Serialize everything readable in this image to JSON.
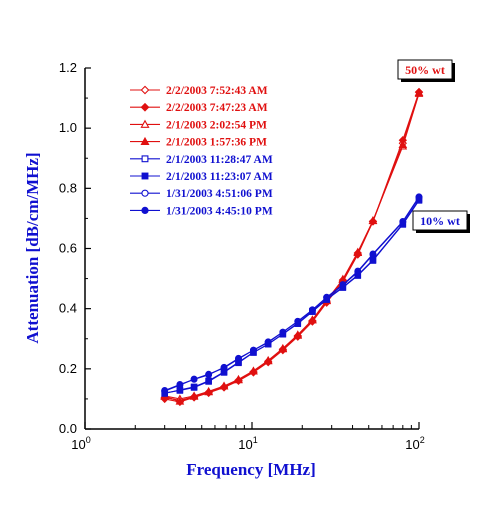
{
  "chart_data": {
    "type": "line",
    "title": "",
    "xlabel": "Frequency [MHz]",
    "ylabel": "Attenuation [dB/cm/MHz]",
    "x_scale": "log",
    "xlim": [
      1,
      100
    ],
    "ylim": [
      0,
      1.2
    ],
    "x_ticks": [
      {
        "value": 1,
        "base": "10",
        "exp": "0"
      },
      {
        "value": 10,
        "base": "10",
        "exp": "1"
      },
      {
        "value": 100,
        "base": "10",
        "exp": "2"
      }
    ],
    "y_ticks": [
      "0.0",
      "0.2",
      "0.4",
      "0.6",
      "0.8",
      "1.0",
      "1.2"
    ],
    "y_tick_values": [
      0,
      0.2,
      0.4,
      0.6,
      0.8,
      1.0,
      1.2
    ],
    "grid": false,
    "legend_position": "top-left",
    "colors": {
      "red": "#e01010",
      "blue": "#1010d0"
    },
    "series": [
      {
        "name": "2/2/2003 7:52:43 AM",
        "color": "#e01010",
        "marker": "diamond",
        "filled": false,
        "x": [
          3,
          3.7,
          4.5,
          5.5,
          6.8,
          8.3,
          10.2,
          12.5,
          15.3,
          18.8,
          23,
          28,
          35,
          43,
          53,
          80,
          100
        ],
        "y": [
          0.105,
          0.095,
          0.107,
          0.122,
          0.14,
          0.162,
          0.19,
          0.225,
          0.265,
          0.31,
          0.36,
          0.425,
          0.495,
          0.585,
          0.69,
          0.95,
          1.12
        ]
      },
      {
        "name": "2/2/2003 7:47:23 AM",
        "color": "#e01010",
        "marker": "diamond",
        "filled": true,
        "x": [
          3,
          3.7,
          4.5,
          5.5,
          6.8,
          8.3,
          10.2,
          12.5,
          15.3,
          18.8,
          23,
          28,
          35,
          43,
          53,
          80,
          100
        ],
        "y": [
          0.1,
          0.09,
          0.105,
          0.12,
          0.138,
          0.16,
          0.188,
          0.222,
          0.262,
          0.307,
          0.357,
          0.42,
          0.49,
          0.58,
          0.69,
          0.96,
          1.12
        ]
      },
      {
        "name": "2/1/2003 2:02:54 PM",
        "color": "#e01010",
        "marker": "triangle",
        "filled": false,
        "x": [
          3,
          3.7,
          4.5,
          5.5,
          6.8,
          8.3,
          10.2,
          12.5,
          15.3,
          18.8,
          23,
          28,
          35,
          43,
          53,
          80,
          100
        ],
        "y": [
          0.11,
          0.1,
          0.11,
          0.125,
          0.143,
          0.165,
          0.193,
          0.228,
          0.268,
          0.313,
          0.363,
          0.428,
          0.498,
          0.588,
          0.693,
          0.94,
          1.115
        ]
      },
      {
        "name": "2/1/2003 1:57:36 PM",
        "color": "#e01010",
        "marker": "triangle",
        "filled": true,
        "x": [
          3,
          3.7,
          4.5,
          5.5,
          6.8,
          8.3,
          10.2,
          12.5,
          15.3,
          18.8,
          23,
          28,
          35,
          43,
          53,
          80,
          100
        ],
        "y": [
          0.108,
          0.092,
          0.108,
          0.123,
          0.142,
          0.163,
          0.192,
          0.226,
          0.266,
          0.311,
          0.362,
          0.426,
          0.496,
          0.586,
          0.692,
          0.945,
          1.118
        ]
      },
      {
        "name": "2/1/2003 11:28:47 AM",
        "color": "#1010d0",
        "marker": "square",
        "filled": false,
        "x": [
          3,
          3.7,
          4.5,
          5.5,
          6.8,
          8.3,
          10.2,
          12.5,
          15.3,
          18.8,
          23,
          28,
          35,
          43,
          53,
          80,
          100
        ],
        "y": [
          0.118,
          0.13,
          0.14,
          0.16,
          0.19,
          0.222,
          0.255,
          0.282,
          0.315,
          0.35,
          0.39,
          0.43,
          0.47,
          0.51,
          0.56,
          0.68,
          0.76
        ]
      },
      {
        "name": "2/1/2003 11:23:07 AM",
        "color": "#1010d0",
        "marker": "square",
        "filled": true,
        "x": [
          3,
          3.7,
          4.5,
          5.5,
          6.8,
          8.3,
          10.2,
          12.5,
          15.3,
          18.8,
          23,
          28,
          35,
          43,
          53,
          80,
          100
        ],
        "y": [
          0.12,
          0.128,
          0.138,
          0.158,
          0.188,
          0.22,
          0.254,
          0.282,
          0.316,
          0.352,
          0.392,
          0.432,
          0.472,
          0.512,
          0.562,
          0.682,
          0.763
        ]
      },
      {
        "name": "1/31/2003 4:51:06 PM",
        "color": "#1010d0",
        "marker": "circle",
        "filled": false,
        "x": [
          3,
          3.7,
          4.5,
          5.5,
          6.8,
          8.3,
          10.2,
          12.5,
          15.3,
          18.8,
          23,
          28,
          35,
          43,
          53,
          80,
          100
        ],
        "y": [
          0.128,
          0.148,
          0.165,
          0.18,
          0.205,
          0.235,
          0.262,
          0.29,
          0.322,
          0.358,
          0.396,
          0.438,
          0.48,
          0.525,
          0.582,
          0.69,
          0.772
        ]
      },
      {
        "name": "1/31/2003 4:45:10 PM",
        "color": "#1010d0",
        "marker": "circle",
        "filled": true,
        "x": [
          3,
          3.7,
          4.5,
          5.5,
          6.8,
          8.3,
          10.2,
          12.5,
          15.3,
          18.8,
          23,
          28,
          35,
          43,
          53,
          80,
          100
        ],
        "y": [
          0.126,
          0.146,
          0.166,
          0.182,
          0.203,
          0.233,
          0.262,
          0.288,
          0.322,
          0.358,
          0.396,
          0.437,
          0.478,
          0.522,
          0.58,
          0.688,
          0.77
        ]
      }
    ],
    "annotations": [
      {
        "text": "50% wt",
        "color": "#e01010"
      },
      {
        "text": "10% wt",
        "color": "#1010d0"
      }
    ]
  }
}
